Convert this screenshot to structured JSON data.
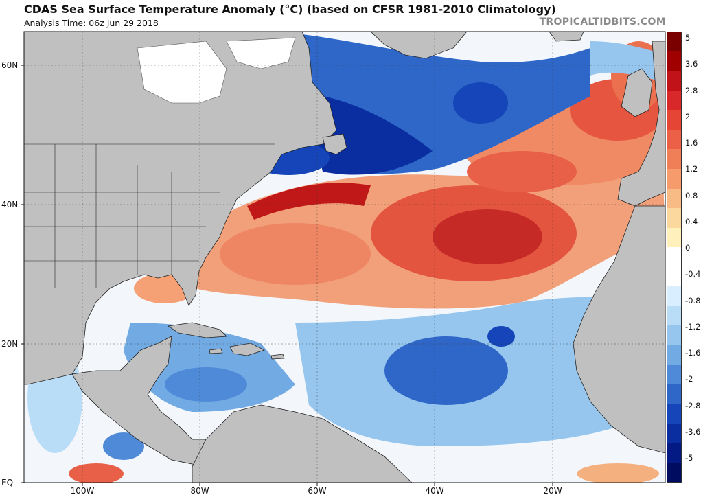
{
  "header": {
    "title": "CDAS Sea Surface Temperature Anomaly (°C) (based on CFSR 1981-2010 Climatology)",
    "analysis_time": "Analysis Time: 06z Jun 29 2018",
    "credit": "TROPICALTIDBITS.COM"
  },
  "map": {
    "region": "North Atlantic",
    "lat_labels": [
      "60N",
      "40N",
      "20N",
      "EQ"
    ],
    "lon_labels": [
      "100W",
      "80W",
      "60W",
      "40W",
      "20W"
    ],
    "land_color": "#c0c0c0",
    "ice_color": "#ffffff"
  },
  "colorbar": {
    "labels": [
      "5",
      "3.6",
      "2.8",
      "2",
      "1.6",
      "1.2",
      "0.8",
      "0.4",
      "0",
      "-0.4",
      "-0.8",
      "-1.2",
      "-1.6",
      "-2",
      "-2.8",
      "-3.6",
      "-5"
    ],
    "colors": [
      "#7a0000",
      "#a00000",
      "#c1121a",
      "#d8282a",
      "#e44535",
      "#eb6046",
      "#f07e56",
      "#f59b6c",
      "#f8bb86",
      "#fbd99e",
      "#fff0bc",
      "#ffffff",
      "#ffffff",
      "#d9efff",
      "#b9ddf6",
      "#96c6ee",
      "#72aae4",
      "#4f8ad8",
      "#2f67c9",
      "#1545b8",
      "#0a2da0",
      "#031a85",
      "#000c60"
    ]
  }
}
